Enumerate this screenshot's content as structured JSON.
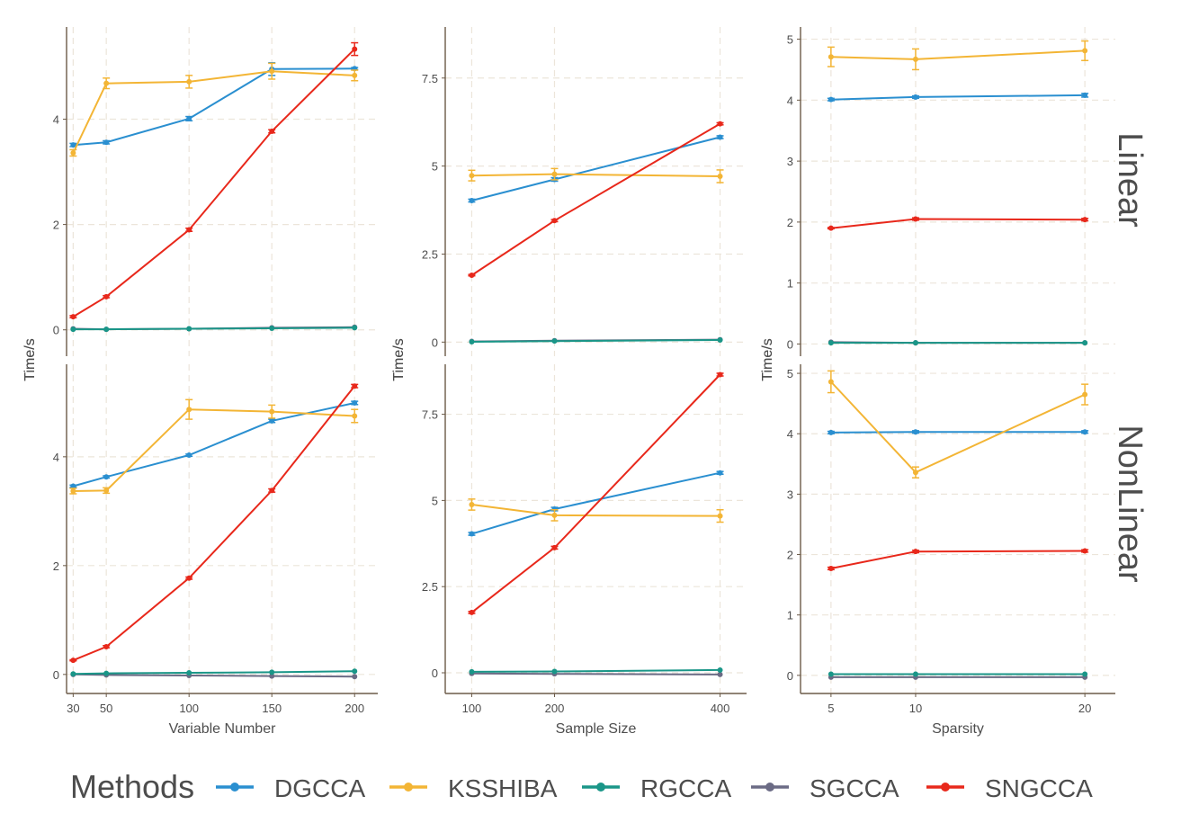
{
  "legend": {
    "title": "Methods",
    "items": [
      {
        "label": "DGCCA",
        "color": "#2a8fd0"
      },
      {
        "label": "KSSHIBA",
        "color": "#f3b535"
      },
      {
        "label": "RGCCA",
        "color": "#1a9688"
      },
      {
        "label": "SGCCA",
        "color": "#6b6b85"
      },
      {
        "label": "SNGCCA",
        "color": "#e8281b"
      }
    ]
  },
  "facets": {
    "row_labels": [
      "Linear",
      "NonLinear"
    ]
  },
  "chart_data": [
    {
      "type": "line",
      "row": "Linear",
      "ylabel": "Time/s",
      "xlabel": "Variable Number",
      "xlim": [
        26,
        214
      ],
      "ylim": [
        -0.5,
        5.75
      ],
      "xticks": [
        30,
        50,
        100,
        150,
        200
      ],
      "yticks": [
        0,
        2,
        4
      ],
      "series": [
        {
          "name": "DGCCA",
          "x": [
            30,
            50,
            100,
            150,
            200
          ],
          "y": [
            3.51,
            3.56,
            4.01,
            4.95,
            4.96
          ],
          "err": [
            0.03,
            0.03,
            0.04,
            0.12,
            0.02
          ]
        },
        {
          "name": "KSSHIBA",
          "x": [
            30,
            50,
            100,
            150,
            200
          ],
          "y": [
            3.36,
            4.68,
            4.71,
            4.91,
            4.83
          ],
          "err": [
            0.06,
            0.1,
            0.12,
            0.15,
            0.1
          ]
        },
        {
          "name": "RGCCA",
          "x": [
            30,
            50,
            100,
            150,
            200
          ],
          "y": [
            0.01,
            0.01,
            0.02,
            0.03,
            0.04
          ],
          "err": [
            0,
            0,
            0,
            0,
            0
          ]
        },
        {
          "name": "SGCCA",
          "x": [
            30,
            50,
            100,
            150,
            200
          ],
          "y": [
            0.02,
            0.01,
            0.02,
            0.04,
            0.05
          ],
          "err": [
            0,
            0,
            0,
            0,
            0
          ]
        },
        {
          "name": "SNGCCA",
          "x": [
            30,
            50,
            100,
            150,
            200
          ],
          "y": [
            0.25,
            0.63,
            1.9,
            3.77,
            5.33
          ],
          "err": [
            0.02,
            0.02,
            0.03,
            0.03,
            0.12
          ]
        }
      ]
    },
    {
      "type": "line",
      "row": "Linear",
      "ylabel": "Time/s",
      "xlabel": "Sample Size",
      "xlim": [
        68,
        432
      ],
      "ylim": [
        -0.4,
        8.95
      ],
      "xticks": [
        100,
        200,
        400
      ],
      "yticks": [
        0.0,
        2.5,
        5.0,
        7.5
      ],
      "series": [
        {
          "name": "DGCCA",
          "x": [
            100,
            200,
            400
          ],
          "y": [
            4.02,
            4.62,
            5.82
          ],
          "err": [
            0.04,
            0.05,
            0.04
          ]
        },
        {
          "name": "KSSHIBA",
          "x": [
            100,
            200,
            400
          ],
          "y": [
            4.73,
            4.77,
            4.71
          ],
          "err": [
            0.15,
            0.16,
            0.18
          ]
        },
        {
          "name": "RGCCA",
          "x": [
            100,
            200,
            400
          ],
          "y": [
            0.01,
            0.03,
            0.06
          ],
          "err": [
            0,
            0,
            0
          ]
        },
        {
          "name": "SGCCA",
          "x": [
            100,
            200,
            400
          ],
          "y": [
            0.02,
            0.04,
            0.07
          ],
          "err": [
            0,
            0,
            0
          ]
        },
        {
          "name": "SNGCCA",
          "x": [
            100,
            200,
            400
          ],
          "y": [
            1.9,
            3.45,
            6.2
          ],
          "err": [
            0.02,
            0.03,
            0.03
          ]
        }
      ]
    },
    {
      "type": "line",
      "row": "Linear",
      "ylabel": "Time/s",
      "xlabel": "Sparsity",
      "xlim": [
        3.2,
        21.8
      ],
      "ylim": [
        -0.2,
        5.2
      ],
      "xticks": [
        5,
        10,
        20
      ],
      "yticks": [
        0,
        1,
        2,
        3,
        4,
        5
      ],
      "series": [
        {
          "name": "DGCCA",
          "x": [
            5,
            10,
            20
          ],
          "y": [
            4.01,
            4.05,
            4.08
          ],
          "err": [
            0.02,
            0.02,
            0.03
          ]
        },
        {
          "name": "KSSHIBA",
          "x": [
            5,
            10,
            20
          ],
          "y": [
            4.71,
            4.67,
            4.81
          ],
          "err": [
            0.16,
            0.17,
            0.16
          ]
        },
        {
          "name": "RGCCA",
          "x": [
            5,
            10,
            20
          ],
          "y": [
            0.02,
            0.02,
            0.02
          ],
          "err": [
            0,
            0,
            0
          ]
        },
        {
          "name": "SGCCA",
          "x": [
            5,
            10,
            20
          ],
          "y": [
            0.03,
            0.02,
            0.02
          ],
          "err": [
            0,
            0,
            0
          ]
        },
        {
          "name": "SNGCCA",
          "x": [
            5,
            10,
            20
          ],
          "y": [
            1.9,
            2.05,
            2.04
          ],
          "err": [
            0.01,
            0.02,
            0.02
          ]
        }
      ]
    },
    {
      "type": "line",
      "row": "NonLinear",
      "ylabel": "Time/s",
      "xlabel": "Variable Number",
      "xlim": [
        26,
        214
      ],
      "ylim": [
        -0.35,
        5.7
      ],
      "xticks": [
        30,
        50,
        100,
        150,
        200
      ],
      "yticks": [
        0,
        2,
        4
      ],
      "series": [
        {
          "name": "DGCCA",
          "x": [
            30,
            50,
            100,
            150,
            200
          ],
          "y": [
            3.46,
            3.63,
            4.03,
            4.66,
            4.99
          ],
          "err": [
            0.02,
            0.02,
            0.02,
            0.03,
            0.03
          ]
        },
        {
          "name": "KSSHIBA",
          "x": [
            30,
            50,
            100,
            150,
            200
          ],
          "y": [
            3.37,
            3.38,
            4.87,
            4.83,
            4.75
          ],
          "err": [
            0.05,
            0.05,
            0.18,
            0.12,
            0.12
          ]
        },
        {
          "name": "RGCCA",
          "x": [
            30,
            50,
            100,
            150,
            200
          ],
          "y": [
            0.01,
            0.02,
            0.03,
            0.04,
            0.06
          ],
          "err": [
            0,
            0,
            0,
            0,
            0
          ]
        },
        {
          "name": "SGCCA",
          "x": [
            30,
            50,
            100,
            150,
            200
          ],
          "y": [
            0.0,
            -0.01,
            -0.02,
            -0.03,
            -0.04
          ],
          "err": [
            0,
            0,
            0,
            0,
            0
          ]
        },
        {
          "name": "SNGCCA",
          "x": [
            30,
            50,
            100,
            150,
            200
          ],
          "y": [
            0.26,
            0.51,
            1.77,
            3.38,
            5.3
          ],
          "err": [
            0.01,
            0.02,
            0.02,
            0.03,
            0.03
          ]
        }
      ]
    },
    {
      "type": "line",
      "row": "NonLinear",
      "ylabel": "Time/s",
      "xlabel": "Sample Size",
      "xlim": [
        68,
        432
      ],
      "ylim": [
        -0.6,
        8.95
      ],
      "xticks": [
        100,
        200,
        400
      ],
      "yticks": [
        0.0,
        2.5,
        5.0,
        7.5
      ],
      "series": [
        {
          "name": "DGCCA",
          "x": [
            100,
            200,
            400
          ],
          "y": [
            4.03,
            4.75,
            5.8
          ],
          "err": [
            0.04,
            0.05,
            0.04
          ]
        },
        {
          "name": "KSSHIBA",
          "x": [
            100,
            200,
            400
          ],
          "y": [
            4.88,
            4.57,
            4.55
          ],
          "err": [
            0.16,
            0.16,
            0.18
          ]
        },
        {
          "name": "RGCCA",
          "x": [
            100,
            200,
            400
          ],
          "y": [
            0.03,
            0.04,
            0.08
          ],
          "err": [
            0,
            0,
            0
          ]
        },
        {
          "name": "SGCCA",
          "x": [
            100,
            200,
            400
          ],
          "y": [
            -0.02,
            -0.03,
            -0.05
          ],
          "err": [
            0,
            0,
            0
          ]
        },
        {
          "name": "SNGCCA",
          "x": [
            100,
            200,
            400
          ],
          "y": [
            1.75,
            3.63,
            8.65
          ],
          "err": [
            0.03,
            0.04,
            0.04
          ]
        }
      ]
    },
    {
      "type": "line",
      "row": "NonLinear",
      "ylabel": "Time/s",
      "xlabel": "Sparsity",
      "xlim": [
        3.2,
        21.8
      ],
      "ylim": [
        -0.3,
        5.15
      ],
      "xticks": [
        5,
        10,
        20
      ],
      "yticks": [
        0,
        1,
        2,
        3,
        4,
        5
      ],
      "series": [
        {
          "name": "DGCCA",
          "x": [
            5,
            10,
            20
          ],
          "y": [
            4.02,
            4.03,
            4.03
          ],
          "err": [
            0.02,
            0.02,
            0.02
          ]
        },
        {
          "name": "KSSHIBA",
          "x": [
            5,
            10,
            20
          ],
          "y": [
            4.86,
            3.36,
            4.65
          ],
          "err": [
            0.18,
            0.09,
            0.17
          ]
        },
        {
          "name": "RGCCA",
          "x": [
            5,
            10,
            20
          ],
          "y": [
            0.02,
            0.02,
            0.02
          ],
          "err": [
            0,
            0,
            0
          ]
        },
        {
          "name": "SGCCA",
          "x": [
            5,
            10,
            20
          ],
          "y": [
            -0.03,
            -0.03,
            -0.03
          ],
          "err": [
            0,
            0,
            0
          ]
        },
        {
          "name": "SNGCCA",
          "x": [
            5,
            10,
            20
          ],
          "y": [
            1.77,
            2.05,
            2.06
          ],
          "err": [
            0.02,
            0.02,
            0.02
          ]
        }
      ]
    }
  ]
}
